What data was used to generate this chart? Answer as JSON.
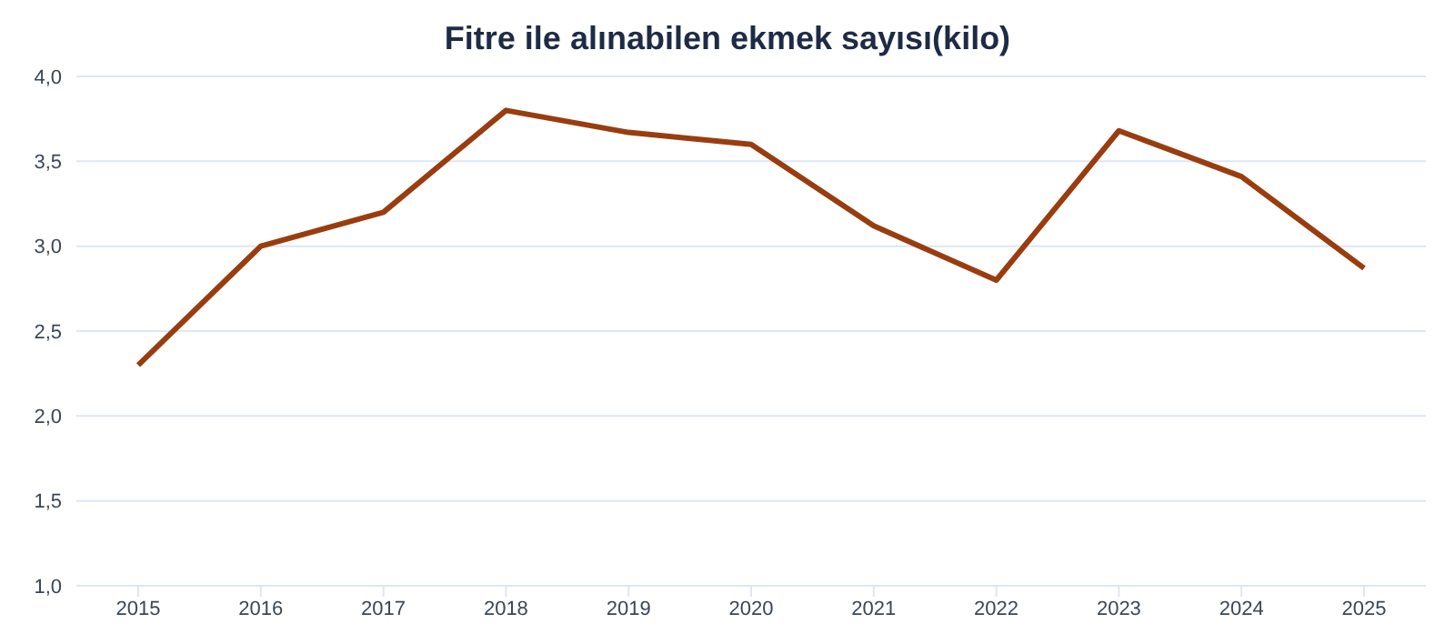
{
  "chart_data": {
    "type": "line",
    "title": "Fitre ile alınabilen ekmek sayısı(kilo)",
    "categories": [
      "2015",
      "2016",
      "2017",
      "2018",
      "2019",
      "2020",
      "2021",
      "2022",
      "2023",
      "2024",
      "2025"
    ],
    "series": [
      {
        "color": "#993d0f",
        "values": [
          2.3,
          3.0,
          3.2,
          3.8,
          3.67,
          3.6,
          3.12,
          2.8,
          3.68,
          3.41,
          2.87
        ]
      }
    ],
    "ylim": [
      1.0,
      4.0
    ],
    "yticks": [
      {
        "value": 1.0,
        "label": "1,0"
      },
      {
        "value": 1.5,
        "label": "1,5"
      },
      {
        "value": 2.0,
        "label": "2,0"
      },
      {
        "value": 2.5,
        "label": "2,5"
      },
      {
        "value": 3.0,
        "label": "3,0"
      },
      {
        "value": 3.5,
        "label": "3,5"
      },
      {
        "value": 4.0,
        "label": "4,0"
      }
    ],
    "grid": "y",
    "legend": false,
    "marker": "none",
    "line_style": "solid"
  }
}
